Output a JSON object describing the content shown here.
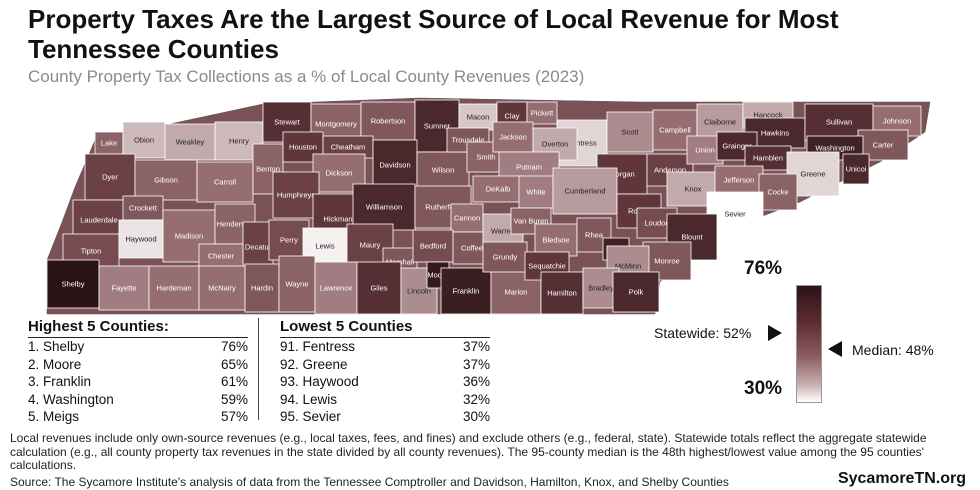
{
  "title": "Property Taxes Are the Largest Source of Local Revenue for Most Tennessee Counties",
  "subtitle": "County Property Tax Collections as a % of Local County Revenues (2023)",
  "highest": {
    "heading": "Highest 5 Counties:",
    "rows": [
      {
        "name": "1. Shelby",
        "value": "76%"
      },
      {
        "name": "2. Moore",
        "value": "65%"
      },
      {
        "name": "3. Franklin",
        "value": "61%"
      },
      {
        "name": "4. Washington",
        "value": "59%"
      },
      {
        "name": "5. Meigs",
        "value": "57%"
      }
    ]
  },
  "lowest": {
    "heading": "Lowest 5 Counties",
    "rows": [
      {
        "name": "91. Fentress",
        "value": "37%"
      },
      {
        "name": "92. Greene",
        "value": "37%"
      },
      {
        "name": "93. Haywood",
        "value": "36%"
      },
      {
        "name": "94. Lewis",
        "value": "32%"
      },
      {
        "name": "95. Sevier",
        "value": "30%"
      }
    ]
  },
  "legend": {
    "max": "76%",
    "min": "30%",
    "statewide": "Statewide: 52%",
    "median": "Median: 48%"
  },
  "footnote": "Local revenues include only own-source revenues (e.g., local taxes, fees, and fines) and exclude others (e.g., federal, state). Statewide totals reflect the aggregate statewide calculation (e.g., all county property tax revenues in the state divided by all county revenues). The 95-county median is the 48th highest/lowest value among the 95 counties' calculations.",
  "source": "Source: The Sycamore Institute's analysis of data from the Tennessee Comptroller and Davidson, Hamilton, Knox, and Shelby Counties",
  "brand": "SycamoreTN.org",
  "colors": {
    "dark": "#2a1316",
    "mid": "#8a5a5e",
    "light": "#ffffff"
  },
  "counties": [
    {
      "name": "Lake",
      "shade": 0.55
    },
    {
      "name": "Obion",
      "shade": 0.25
    },
    {
      "name": "Weakley",
      "shade": 0.3
    },
    {
      "name": "Henry",
      "shade": 0.25
    },
    {
      "name": "Stewart",
      "shade": 0.8
    },
    {
      "name": "Montgomery",
      "shade": 0.55
    },
    {
      "name": "Robertson",
      "shade": 0.6
    },
    {
      "name": "Sumner",
      "shade": 0.85
    },
    {
      "name": "Macon",
      "shade": 0.2
    },
    {
      "name": "Clay",
      "shade": 0.75
    },
    {
      "name": "Pickett",
      "shade": 0.5
    },
    {
      "name": "Fentress",
      "shade": 0.15
    },
    {
      "name": "Scott",
      "shade": 0.4
    },
    {
      "name": "Campbell",
      "shade": 0.5
    },
    {
      "name": "Claiborne",
      "shade": 0.35
    },
    {
      "name": "Hancock",
      "shade": 0.3
    },
    {
      "name": "Hawkins",
      "shade": 0.85
    },
    {
      "name": "Sullivan",
      "shade": 0.8
    },
    {
      "name": "Johnson",
      "shade": 0.5
    },
    {
      "name": "Carter",
      "shade": 0.6
    },
    {
      "name": "Dyer",
      "shade": 0.7
    },
    {
      "name": "Gibson",
      "shade": 0.55
    },
    {
      "name": "Carroll",
      "shade": 0.5
    },
    {
      "name": "Benton",
      "shade": 0.55
    },
    {
      "name": "Houston",
      "shade": 0.75
    },
    {
      "name": "Cheatham",
      "shade": 0.7
    },
    {
      "name": "Dickson",
      "shade": 0.5
    },
    {
      "name": "Davidson",
      "shade": 0.85
    },
    {
      "name": "Wilson",
      "shade": 0.6
    },
    {
      "name": "Trousdale",
      "shade": 0.6
    },
    {
      "name": "Smith",
      "shade": 0.55
    },
    {
      "name": "Jackson",
      "shade": 0.5
    },
    {
      "name": "Overton",
      "shade": 0.3
    },
    {
      "name": "Putnam",
      "shade": 0.45
    },
    {
      "name": "Morgan",
      "shade": 0.75
    },
    {
      "name": "Anderson",
      "shade": 0.7
    },
    {
      "name": "Union",
      "shade": 0.45
    },
    {
      "name": "Grainger",
      "shade": 0.85
    },
    {
      "name": "Hamblen",
      "shade": 0.8
    },
    {
      "name": "Washington",
      "shade": 0.9
    },
    {
      "name": "Greene",
      "shade": 0.15
    },
    {
      "name": "Unicoi",
      "shade": 0.85
    },
    {
      "name": "Lauderdale",
      "shade": 0.7
    },
    {
      "name": "Crockett",
      "shade": 0.6
    },
    {
      "name": "Madison",
      "shade": 0.5
    },
    {
      "name": "Henderson",
      "shade": 0.55
    },
    {
      "name": "Decatur",
      "shade": 0.7
    },
    {
      "name": "Humphreys",
      "shade": 0.7
    },
    {
      "name": "Hickman",
      "shade": 0.75
    },
    {
      "name": "Williamson",
      "shade": 0.85
    },
    {
      "name": "Rutherford",
      "shade": 0.6
    },
    {
      "name": "Cannon",
      "shade": 0.5
    },
    {
      "name": "DeKalb",
      "shade": 0.5
    },
    {
      "name": "White",
      "shade": 0.45
    },
    {
      "name": "Cumberland",
      "shade": 0.35
    },
    {
      "name": "Roane",
      "shade": 0.75
    },
    {
      "name": "Knox",
      "shade": 0.3
    },
    {
      "name": "Jefferson",
      "shade": 0.5
    },
    {
      "name": "Cocke",
      "shade": 0.55
    },
    {
      "name": "Sevier",
      "shade": 0.0
    },
    {
      "name": "Tipton",
      "shade": 0.65
    },
    {
      "name": "Haywood",
      "shade": 0.1
    },
    {
      "name": "Chester",
      "shade": 0.5
    },
    {
      "name": "Perry",
      "shade": 0.65
    },
    {
      "name": "Lewis",
      "shade": 0.05
    },
    {
      "name": "Maury",
      "shade": 0.7
    },
    {
      "name": "Marshall",
      "shade": 0.6
    },
    {
      "name": "Bedford",
      "shade": 0.65
    },
    {
      "name": "Coffee",
      "shade": 0.6
    },
    {
      "name": "Warren",
      "shade": 0.3
    },
    {
      "name": "Van Buren",
      "shade": 0.55
    },
    {
      "name": "Bledsoe",
      "shade": 0.5
    },
    {
      "name": "Rhea",
      "shade": 0.6
    },
    {
      "name": "Meigs",
      "shade": 0.9
    },
    {
      "name": "Loudon",
      "shade": 0.65
    },
    {
      "name": "Blount",
      "shade": 0.85
    },
    {
      "name": "Monroe",
      "shade": 0.6
    },
    {
      "name": "McMinn",
      "shade": 0.4
    },
    {
      "name": "Shelby",
      "shade": 1.0
    },
    {
      "name": "Fayette",
      "shade": 0.45
    },
    {
      "name": "Hardeman",
      "shade": 0.5
    },
    {
      "name": "McNairy",
      "shade": 0.5
    },
    {
      "name": "Hardin",
      "shade": 0.6
    },
    {
      "name": "Wayne",
      "shade": 0.55
    },
    {
      "name": "Lawrence",
      "shade": 0.45
    },
    {
      "name": "Giles",
      "shade": 0.8
    },
    {
      "name": "Lincoln",
      "shade": 0.4
    },
    {
      "name": "Moore",
      "shade": 0.95
    },
    {
      "name": "Franklin",
      "shade": 0.92
    },
    {
      "name": "Marion",
      "shade": 0.55
    },
    {
      "name": "Grundy",
      "shade": 0.6
    },
    {
      "name": "Sequatchie",
      "shade": 0.75
    },
    {
      "name": "Hamilton",
      "shade": 0.8
    },
    {
      "name": "Bradley",
      "shade": 0.4
    },
    {
      "name": "Polk",
      "shade": 0.85
    }
  ]
}
